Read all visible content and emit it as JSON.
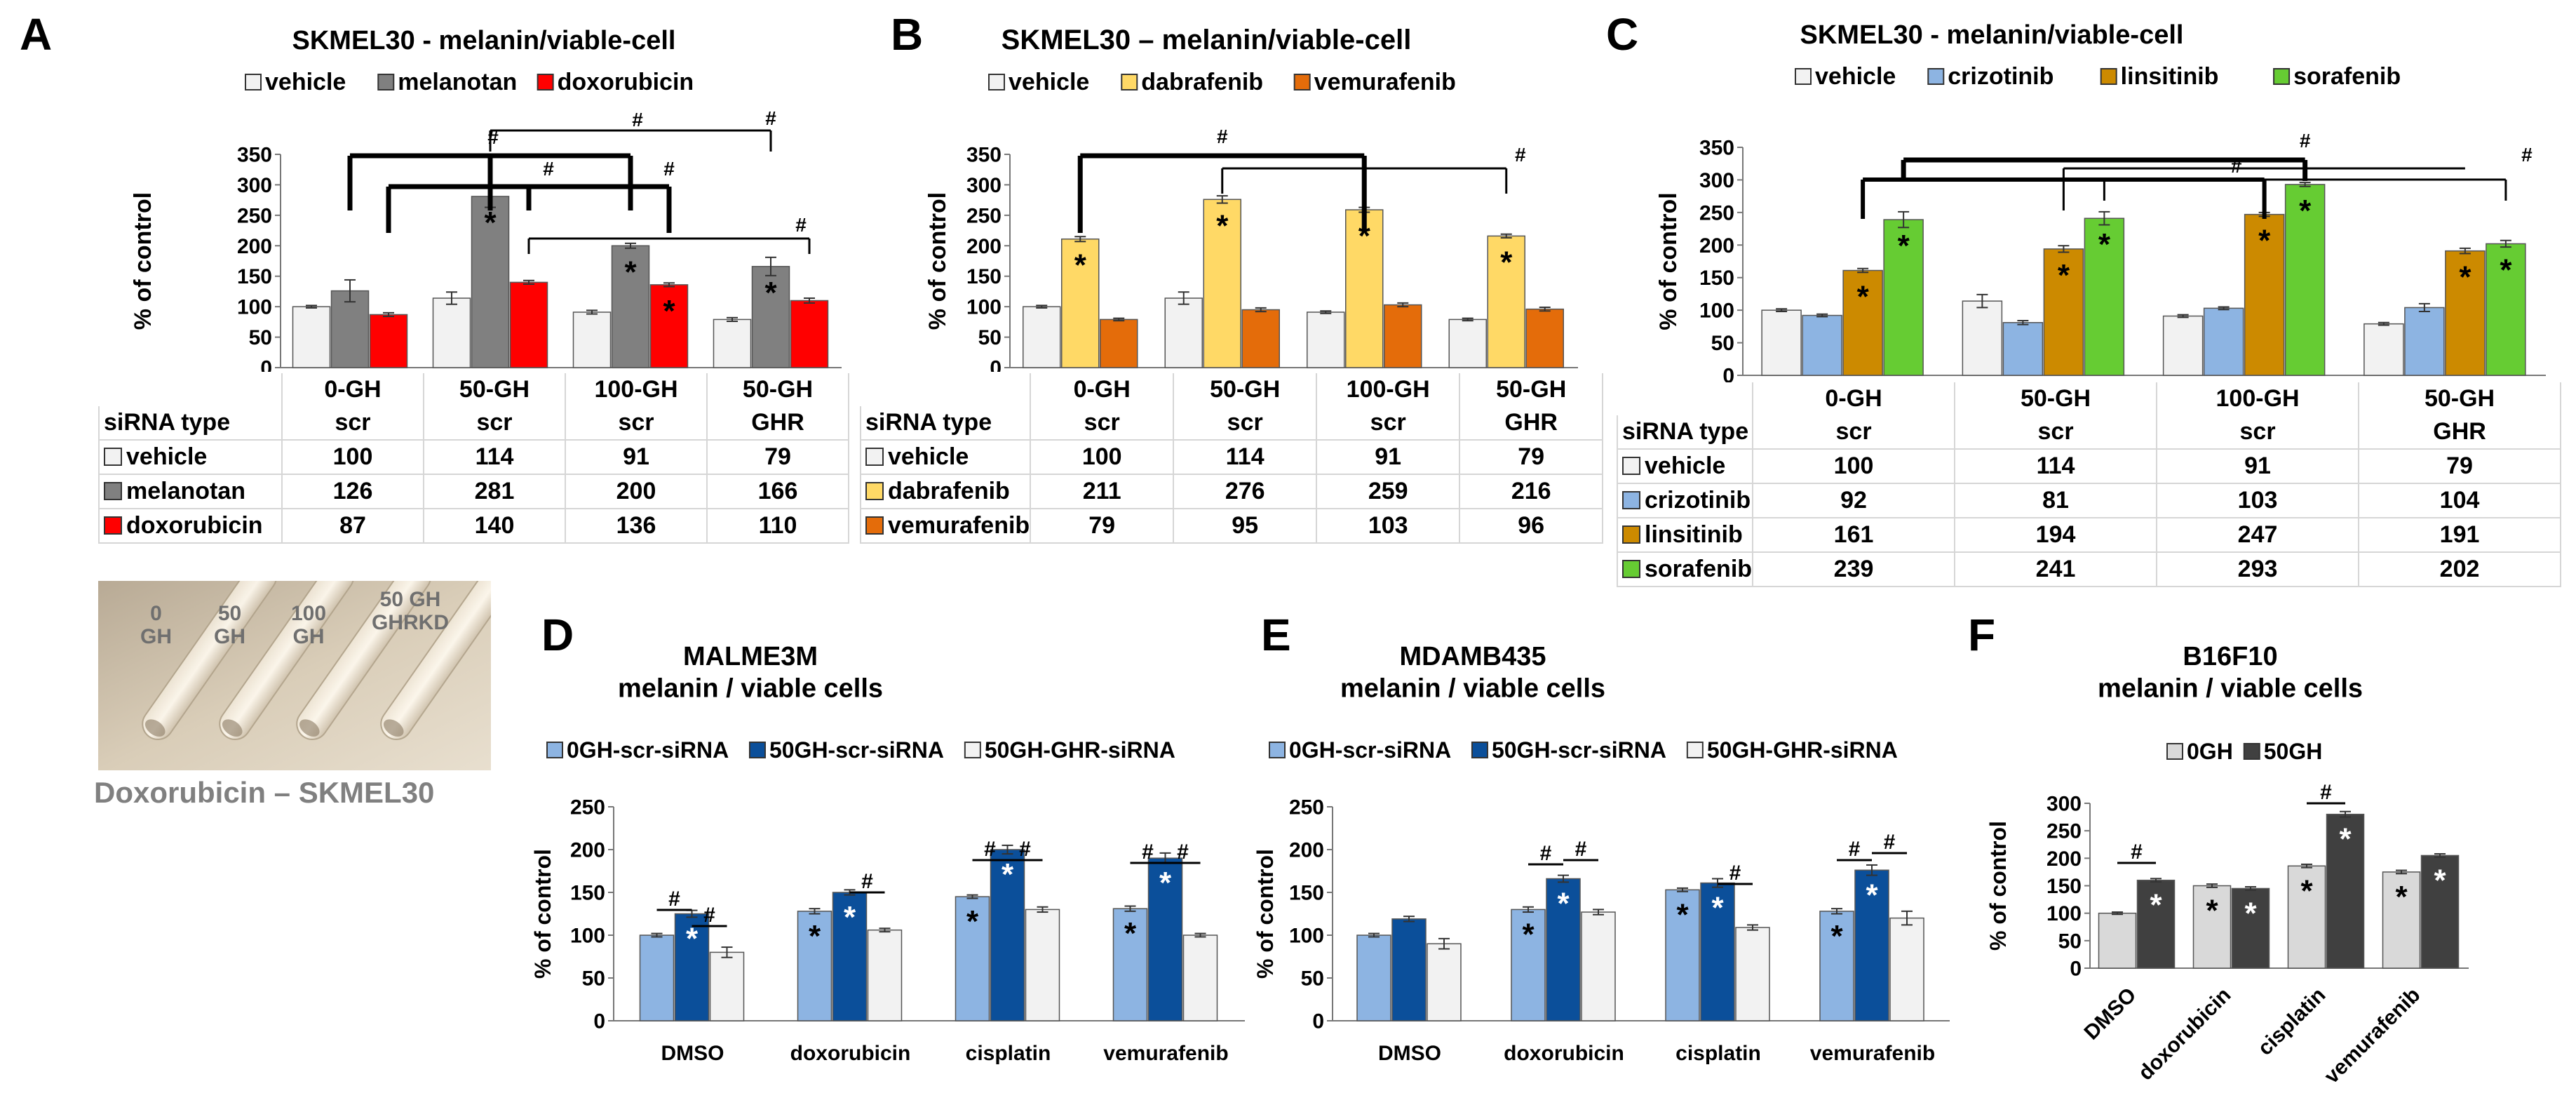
{
  "panels": {
    "A": {
      "letter": "A",
      "title": "SKMEL30 - melanin/viable-cell",
      "ylabel": "% of control",
      "yticks": [
        0,
        50,
        100,
        150,
        200,
        250,
        300,
        350
      ],
      "legend": [
        {
          "name": "vehicle",
          "color": "#f2f2f2"
        },
        {
          "name": "melanotan",
          "color": "#808080"
        },
        {
          "name": "doxorubicin",
          "color": "#ff0000"
        }
      ],
      "groups": [
        "0-GH",
        "50-GH",
        "100-GH",
        "50-GH"
      ],
      "subgroups": [
        "scr",
        "scr",
        "scr",
        "GHR"
      ],
      "siRNA_label": "siRNA type",
      "rows": [
        {
          "name": "vehicle",
          "values": [
            "100",
            "114",
            "91",
            "79"
          ]
        },
        {
          "name": "melanotan",
          "values": [
            "126",
            "281",
            "200",
            "166"
          ]
        },
        {
          "name": "doxorubicin",
          "values": [
            "87",
            "140",
            "136",
            "110"
          ]
        }
      ],
      "hash": "#",
      "star": "*"
    },
    "B": {
      "letter": "B",
      "title": "SKMEL30 – melanin/viable-cell",
      "ylabel": "% of control",
      "yticks": [
        0,
        50,
        100,
        150,
        200,
        250,
        300,
        350
      ],
      "legend": [
        {
          "name": "vehicle",
          "color": "#f2f2f2"
        },
        {
          "name": "dabrafenib",
          "color": "#ffd966"
        },
        {
          "name": "vemurafenib",
          "color": "#e46c0a"
        }
      ],
      "groups": [
        "0-GH",
        "50-GH",
        "100-GH",
        "50-GH"
      ],
      "subgroups": [
        "scr",
        "scr",
        "scr",
        "GHR"
      ],
      "siRNA_label": "siRNA type",
      "rows": [
        {
          "name": "vehicle",
          "values": [
            "100",
            "114",
            "91",
            "79"
          ]
        },
        {
          "name": "dabrafenib",
          "values": [
            "211",
            "276",
            "259",
            "216"
          ]
        },
        {
          "name": "vemurafenib",
          "values": [
            "79",
            "95",
            "103",
            "96"
          ]
        }
      ],
      "hash": "#",
      "star": "*"
    },
    "C": {
      "letter": "C",
      "title": "SKMEL30 - melanin/viable-cell",
      "ylabel": "% of control",
      "yticks": [
        0,
        50,
        100,
        150,
        200,
        250,
        300,
        350
      ],
      "legend": [
        {
          "name": "vehicle",
          "color": "#f2f2f2"
        },
        {
          "name": "crizotinib",
          "color": "#8db4e2"
        },
        {
          "name": "linsitinib",
          "color": "#cc8a00"
        },
        {
          "name": "sorafenib",
          "color": "#66cc33"
        }
      ],
      "groups": [
        "0-GH",
        "50-GH",
        "100-GH",
        "50-GH"
      ],
      "subgroups": [
        "scr",
        "scr",
        "scr",
        "GHR"
      ],
      "siRNA_label": "siRNA type",
      "rows": [
        {
          "name": "vehicle",
          "values": [
            "100",
            "114",
            "91",
            "79"
          ]
        },
        {
          "name": "crizotinib",
          "values": [
            "92",
            "81",
            "103",
            "104"
          ]
        },
        {
          "name": "linsitinib",
          "values": [
            "161",
            "194",
            "247",
            "191"
          ]
        },
        {
          "name": "sorafenib",
          "values": [
            "239",
            "241",
            "293",
            "202"
          ]
        }
      ],
      "hash": "#",
      "star": "*"
    },
    "D": {
      "letter": "D",
      "title": "MALME3M",
      "subtitle": "melanin / viable cells",
      "ylabel": "% of control",
      "yticks": [
        0,
        50,
        100,
        150,
        200,
        250
      ],
      "legend": [
        {
          "name": "0GH-scr-siRNA",
          "color": "#8db4e2"
        },
        {
          "name": "50GH-scr-siRNA",
          "color": "#0b4f9a"
        },
        {
          "name": "50GH-GHR-siRNA",
          "color": "#f2f2f2"
        }
      ],
      "categories": [
        "DMSO",
        "doxorubicin",
        "cisplatin",
        "vemurafenib"
      ],
      "hash": "#",
      "star": "*"
    },
    "E": {
      "letter": "E",
      "title": "MDAMB435",
      "subtitle": "melanin / viable cells",
      "ylabel": "% of control",
      "yticks": [
        0,
        50,
        100,
        150,
        200,
        250
      ],
      "legend": [
        {
          "name": "0GH-scr-siRNA",
          "color": "#8db4e2"
        },
        {
          "name": "50GH-scr-siRNA",
          "color": "#0b4f9a"
        },
        {
          "name": "50GH-GHR-siRNA",
          "color": "#f2f2f2"
        }
      ],
      "categories": [
        "DMSO",
        "doxorubicin",
        "cisplatin",
        "vemurafenib"
      ],
      "hash": "#",
      "star": "*"
    },
    "F": {
      "letter": "F",
      "title": "B16F10",
      "subtitle": "melanin / viable cells",
      "ylabel": "% of control",
      "yticks": [
        0,
        50,
        100,
        150,
        200,
        250,
        300
      ],
      "legend": [
        {
          "name": "0GH",
          "color": "#d9d9d9"
        },
        {
          "name": "50GH",
          "color": "#404040"
        }
      ],
      "categories": [
        "DMSO",
        "doxorubicin",
        "cisplatin",
        "vemurafenib"
      ],
      "hash": "#",
      "star": "*"
    }
  },
  "photo": {
    "labels": [
      "0\nGH",
      "50\nGH",
      "100\nGH",
      "50 GH\nGHRKD"
    ],
    "caption": "Doxorubicin – SKMEL30"
  },
  "chart_data": [
    {
      "panel": "A",
      "type": "bar",
      "title": "SKMEL30 - melanin/viable-cell",
      "ylabel": "% of control",
      "ylim": [
        0,
        350
      ],
      "categories": [
        "0-GH scr",
        "50-GH scr",
        "100-GH scr",
        "50-GH GHR"
      ],
      "series": [
        {
          "name": "vehicle",
          "values": [
            100,
            114,
            91,
            79
          ],
          "errors": [
            2,
            10,
            3,
            3
          ]
        },
        {
          "name": "melanotan",
          "values": [
            126,
            281,
            200,
            166
          ],
          "errors": [
            18,
            18,
            4,
            15
          ]
        },
        {
          "name": "doxorubicin",
          "values": [
            87,
            140,
            136,
            110
          ],
          "errors": [
            3,
            3,
            3,
            4
          ]
        }
      ],
      "stars": [
        [],
        [
          "melanotan"
        ],
        [
          "melanotan",
          "doxorubicin"
        ],
        [
          "melanotan"
        ]
      ]
    },
    {
      "panel": "B",
      "type": "bar",
      "title": "SKMEL30 – melanin/viable-cell",
      "ylabel": "% of control",
      "ylim": [
        0,
        350
      ],
      "categories": [
        "0-GH scr",
        "50-GH scr",
        "100-GH scr",
        "50-GH GHR"
      ],
      "series": [
        {
          "name": "vehicle",
          "values": [
            100,
            114,
            91,
            79
          ],
          "errors": [
            2,
            10,
            2,
            2
          ]
        },
        {
          "name": "dabrafenib",
          "values": [
            211,
            276,
            259,
            216
          ],
          "errors": [
            4,
            6,
            4,
            3
          ]
        },
        {
          "name": "vemurafenib",
          "values": [
            79,
            95,
            103,
            96
          ],
          "errors": [
            2,
            3,
            3,
            3
          ]
        }
      ],
      "stars": [
        [
          "dabrafenib"
        ],
        [
          "dabrafenib"
        ],
        [
          "dabrafenib"
        ],
        [
          "dabrafenib"
        ]
      ]
    },
    {
      "panel": "C",
      "type": "bar",
      "title": "SKMEL30 - melanin/viable-cell",
      "ylabel": "% of control",
      "ylim": [
        0,
        350
      ],
      "categories": [
        "0-GH scr",
        "50-GH scr",
        "100-GH scr",
        "50-GH GHR"
      ],
      "series": [
        {
          "name": "vehicle",
          "values": [
            100,
            114,
            91,
            79
          ],
          "errors": [
            2,
            10,
            2,
            2
          ]
        },
        {
          "name": "crizotinib",
          "values": [
            92,
            81,
            103,
            104
          ],
          "errors": [
            2,
            3,
            2,
            6
          ]
        },
        {
          "name": "linsitinib",
          "values": [
            161,
            194,
            247,
            191
          ],
          "errors": [
            3,
            5,
            3,
            4
          ]
        },
        {
          "name": "sorafenib",
          "values": [
            239,
            241,
            293,
            202
          ],
          "errors": [
            12,
            10,
            3,
            5
          ]
        }
      ],
      "stars": [
        [
          "linsitinib",
          "sorafenib"
        ],
        [
          "linsitinib",
          "sorafenib"
        ],
        [
          "linsitinib",
          "sorafenib"
        ],
        [
          "linsitinib",
          "sorafenib"
        ]
      ]
    },
    {
      "panel": "D",
      "type": "bar",
      "title": "MALME3M melanin / viable cells",
      "ylabel": "% of control",
      "ylim": [
        0,
        250
      ],
      "categories": [
        "DMSO",
        "doxorubicin",
        "cisplatin",
        "vemurafenib"
      ],
      "series": [
        {
          "name": "0GH-scr-siRNA",
          "values": [
            100,
            128,
            145,
            131
          ],
          "errors": [
            2,
            3,
            2,
            3
          ]
        },
        {
          "name": "50GH-scr-siRNA",
          "values": [
            125,
            150,
            200,
            190
          ],
          "errors": [
            4,
            3,
            5,
            6
          ]
        },
        {
          "name": "50GH-GHR-siRNA",
          "values": [
            80,
            106,
            130,
            100
          ],
          "errors": [
            6,
            2,
            3,
            2
          ]
        }
      ],
      "stars": [
        [
          "50GH-scr-siRNA"
        ],
        [
          "0GH-scr-siRNA",
          "50GH-scr-siRNA"
        ],
        [
          "0GH-scr-siRNA",
          "50GH-scr-siRNA"
        ],
        [
          "0GH-scr-siRNA",
          "50GH-scr-siRNA"
        ]
      ]
    },
    {
      "panel": "E",
      "type": "bar",
      "title": "MDAMB435 melanin / viable cells",
      "ylabel": "% of control",
      "ylim": [
        0,
        250
      ],
      "categories": [
        "DMSO",
        "doxorubicin",
        "cisplatin",
        "vemurafenib"
      ],
      "series": [
        {
          "name": "0GH-scr-siRNA",
          "values": [
            100,
            130,
            153,
            128
          ],
          "errors": [
            2,
            3,
            2,
            3
          ]
        },
        {
          "name": "50GH-scr-siRNA",
          "values": [
            119,
            166,
            161,
            176
          ],
          "errors": [
            3,
            4,
            5,
            6
          ]
        },
        {
          "name": "50GH-GHR-siRNA",
          "values": [
            90,
            127,
            109,
            120
          ],
          "errors": [
            6,
            3,
            3,
            8
          ]
        }
      ],
      "stars": [
        [],
        [
          "0GH-scr-siRNA",
          "50GH-scr-siRNA"
        ],
        [
          "0GH-scr-siRNA",
          "50GH-scr-siRNA"
        ],
        [
          "0GH-scr-siRNA",
          "50GH-scr-siRNA"
        ]
      ]
    },
    {
      "panel": "F",
      "type": "bar",
      "title": "B16F10 melanin / viable cells",
      "ylabel": "% of control",
      "ylim": [
        0,
        300
      ],
      "categories": [
        "DMSO",
        "doxorubicin",
        "cisplatin",
        "vemurafenib"
      ],
      "series": [
        {
          "name": "0GH",
          "values": [
            100,
            150,
            186,
            175
          ],
          "errors": [
            2,
            3,
            3,
            3
          ]
        },
        {
          "name": "50GH",
          "values": [
            160,
            145,
            280,
            205
          ],
          "errors": [
            3,
            3,
            5,
            3
          ]
        }
      ],
      "stars": [
        [
          "50GH"
        ],
        [
          "0GH",
          "50GH"
        ],
        [
          "0GH",
          "50GH"
        ],
        [
          "0GH",
          "50GH"
        ]
      ]
    }
  ]
}
